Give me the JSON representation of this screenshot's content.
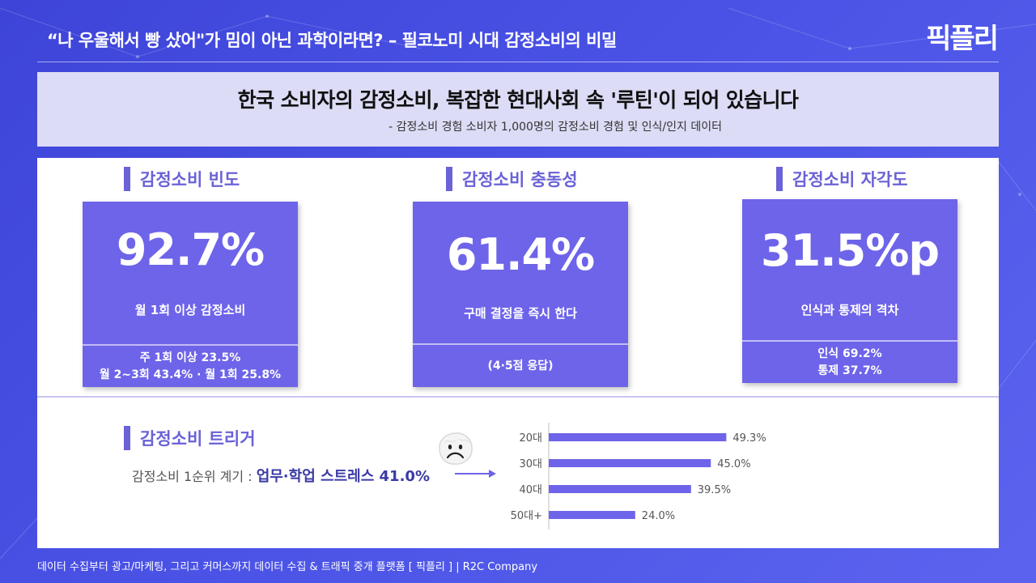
{
  "header": {
    "title": "“나 우울해서 빵 샀어\"가 밈이 아닌 과학이라면? – 필코노미 시대 감정소비의 비밀",
    "logo": "픽플리"
  },
  "banner": {
    "title": "한국 소비자의 감정소비, 복잡한 현대사회 속 '루틴'이 되어 있습니다",
    "subtitle": "- 감정소비 경험 소비자 1,000명의 감정소비 경험 및 인식/인지 데이터"
  },
  "stats": [
    {
      "heading": "감정소비 빈도",
      "value": "92.7%",
      "label": "월 1회 이상 감정소비",
      "details": [
        "주 1회 이상 23.5%",
        "월 2~3회 43.4% · 월 1회 25.8%"
      ]
    },
    {
      "heading": "감정소비 충동성",
      "value": "61.4%",
      "label": "구매 결정을 즉시 한다",
      "details": [
        "(4·5점 응답)"
      ]
    },
    {
      "heading": "감정소비 자각도",
      "value": "31.5%p",
      "label": "인식과 통제의 격차",
      "details": [
        "인식 69.2%",
        "통제 37.7%"
      ]
    }
  ],
  "trigger": {
    "heading": "감정소비 트리거",
    "lead": "감정소비 1순위 계기 : ",
    "highlight": "업무·학업 스트레스 41.0%",
    "icon": "sad-face-icon"
  },
  "chart_data": {
    "type": "bar",
    "orientation": "horizontal",
    "categories": [
      "20대",
      "30대",
      "40대",
      "50대+"
    ],
    "values": [
      49.3,
      45.0,
      39.5,
      24.0
    ],
    "value_labels": [
      "49.3%",
      "45.0%",
      "39.5%",
      "24.0%"
    ],
    "xlim": [
      0,
      60
    ],
    "grid": false,
    "legend": "none",
    "bar_color": "#6e64e9"
  },
  "footer": {
    "text": "데이터 수집부터 광고/마케팅, 그리고 커머스까지 데이터 수집 & 트래픽 중개 플랫폼 [ 픽플리 ]  |  R2C Company"
  },
  "colors": {
    "accent": "#6e64e9",
    "heading": "#6a62d6",
    "banner_bg": "#dcdcf6"
  }
}
